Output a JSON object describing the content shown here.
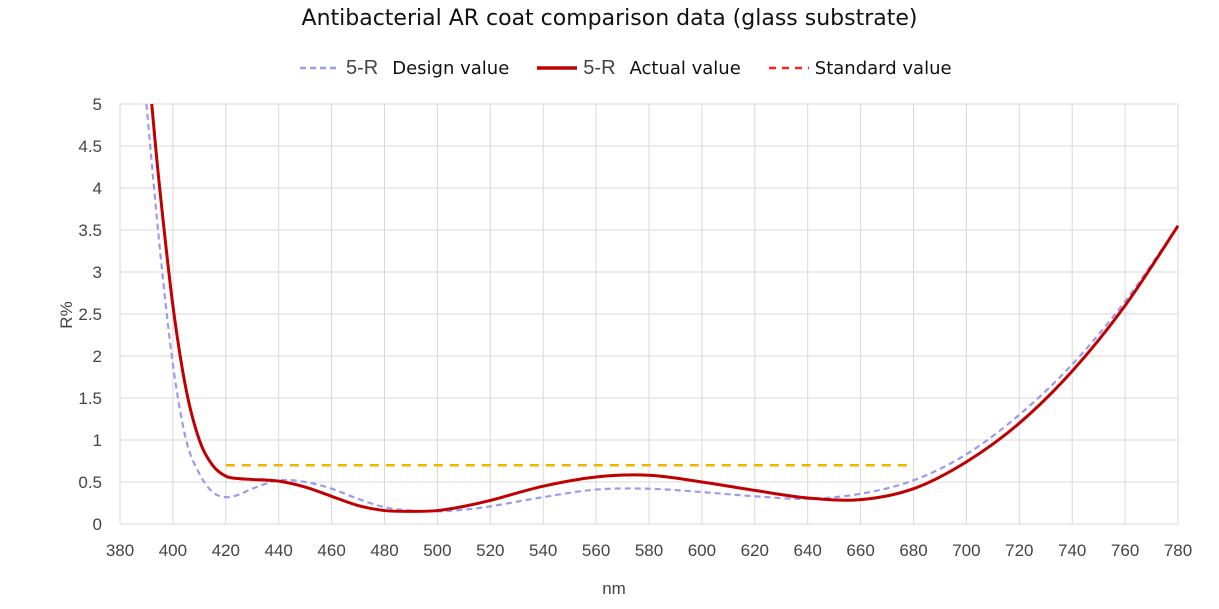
{
  "chart_data": {
    "type": "line",
    "title": "Antibacterial AR coat comparison data (glass substrate)",
    "xlabel": "nm",
    "ylabel": "R%",
    "xlim": [
      380,
      780
    ],
    "ylim": [
      0,
      5
    ],
    "x_ticks": [
      "380",
      "400",
      "420",
      "440",
      "460",
      "480",
      "500",
      "520",
      "540",
      "560",
      "580",
      "600",
      "620",
      "640",
      "660",
      "680",
      "700",
      "720",
      "740",
      "760",
      "780"
    ],
    "y_ticks": [
      "0",
      "0.5",
      "1",
      "1.5",
      "2",
      "2.5",
      "3",
      "3.5",
      "4",
      "4.5",
      "5"
    ],
    "grid": true,
    "legend_position": "top",
    "legend": [
      {
        "series_label": "5-R",
        "text": "Design value"
      },
      {
        "series_label": "5-R",
        "text": "Actual value"
      },
      {
        "series_label": "",
        "text": "Standard value"
      }
    ],
    "series": [
      {
        "name": "5-R Design value",
        "color": "#9b9bf0",
        "style": "dashed",
        "x": [
          390,
          395,
          400,
          405,
          410,
          415,
          420,
          425,
          430,
          440,
          450,
          460,
          470,
          480,
          490,
          500,
          510,
          520,
          540,
          560,
          580,
          600,
          620,
          640,
          660,
          680,
          700,
          720,
          740,
          760,
          780
        ],
        "y": [
          5.0,
          3.3,
          1.9,
          1.0,
          0.6,
          0.38,
          0.32,
          0.35,
          0.42,
          0.52,
          0.5,
          0.42,
          0.3,
          0.2,
          0.16,
          0.15,
          0.17,
          0.21,
          0.32,
          0.41,
          0.42,
          0.38,
          0.33,
          0.3,
          0.36,
          0.52,
          0.83,
          1.3,
          1.9,
          2.65,
          3.55
        ]
      },
      {
        "name": "5-R Actual value",
        "color": "#c00000",
        "style": "solid",
        "x": [
          392,
          395,
          400,
          405,
          410,
          415,
          420,
          425,
          430,
          440,
          450,
          460,
          470,
          480,
          490,
          500,
          510,
          520,
          540,
          560,
          580,
          600,
          620,
          640,
          660,
          680,
          700,
          720,
          740,
          760,
          780
        ],
        "y": [
          5.0,
          4.0,
          2.6,
          1.6,
          1.0,
          0.7,
          0.57,
          0.54,
          0.53,
          0.51,
          0.44,
          0.33,
          0.22,
          0.16,
          0.15,
          0.16,
          0.21,
          0.28,
          0.45,
          0.56,
          0.58,
          0.5,
          0.4,
          0.31,
          0.29,
          0.42,
          0.74,
          1.2,
          1.82,
          2.6,
          3.55
        ]
      },
      {
        "name": "Standard value",
        "color": "#f5b000",
        "style": "dashed",
        "x": [
          420,
          680
        ],
        "y": [
          0.7,
          0.7
        ]
      }
    ]
  }
}
